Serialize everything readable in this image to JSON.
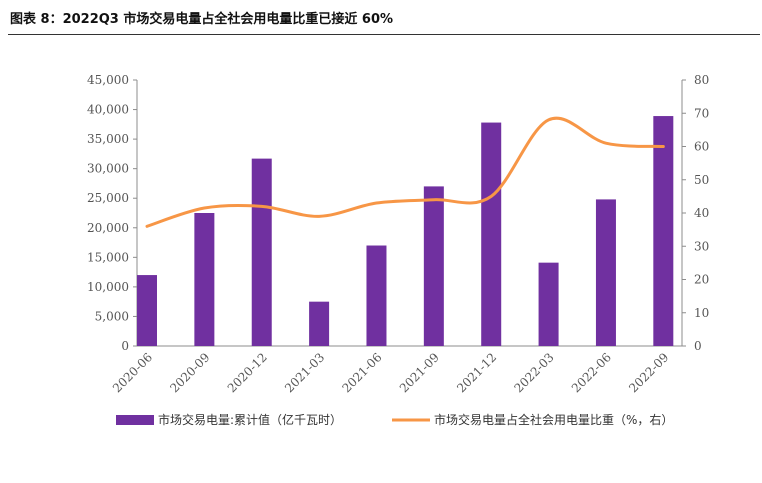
{
  "header": {
    "title": "图表 8：2022Q3 市场交易电量占全社会用电量比重已接近 60%"
  },
  "colors": {
    "bar": "#7030A0",
    "line": "#F79646",
    "axis": "#8c8c8c",
    "tick_text": "#555555"
  },
  "chart_data": {
    "type": "bar+line",
    "categories": [
      "2020-06",
      "2020-09",
      "2020-12",
      "2021-03",
      "2021-06",
      "2021-09",
      "2021-12",
      "2022-03",
      "2022-06",
      "2022-09"
    ],
    "series": [
      {
        "name": "市场交易电量:累计值（亿千瓦时）",
        "type": "bar",
        "axis": "left",
        "values": [
          12000,
          22500,
          31700,
          7500,
          17000,
          27000,
          37800,
          14100,
          24800,
          38900
        ]
      },
      {
        "name": "市场交易电量占全社会用电量比重（%，右）",
        "type": "line",
        "axis": "right",
        "smooth": true,
        "values": [
          36,
          41.5,
          42,
          39,
          43,
          44,
          45,
          68,
          61,
          60
        ]
      }
    ],
    "y_left": {
      "lim": [
        0,
        45000
      ],
      "ticks": [
        "0",
        "5,000",
        "10,000",
        "15,000",
        "20,000",
        "25,000",
        "30,000",
        "35,000",
        "40,000",
        "45,000"
      ]
    },
    "y_right": {
      "lim": [
        0,
        80
      ],
      "ticks": [
        "0",
        "10",
        "20",
        "30",
        "40",
        "50",
        "60",
        "70",
        "80"
      ]
    },
    "grid": false,
    "legend_position": "bottom"
  }
}
